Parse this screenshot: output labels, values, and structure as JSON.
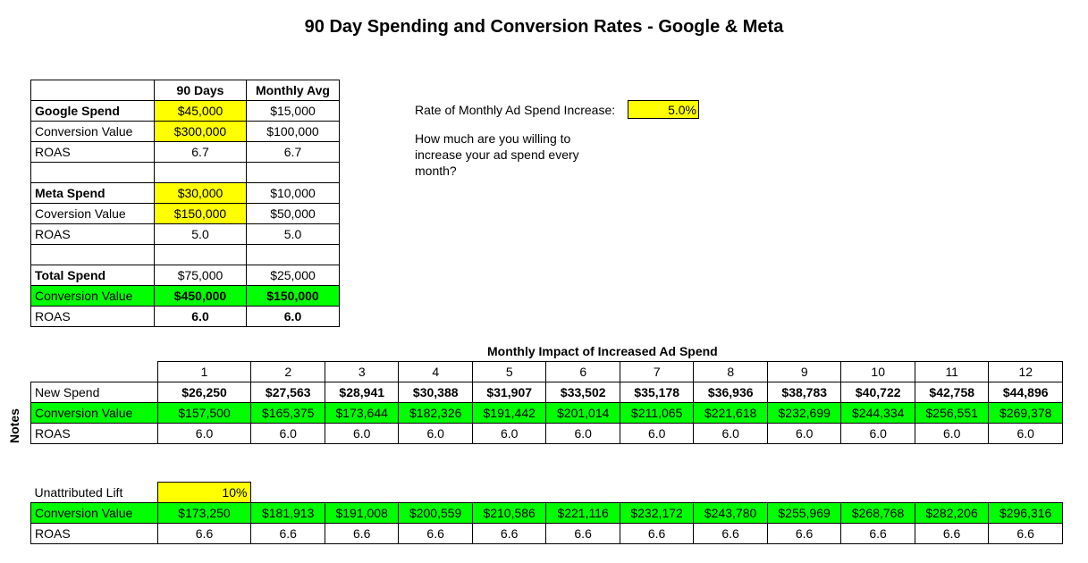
{
  "title": "90 Day Spending and Conversion Rates - Google & Meta",
  "summary": {
    "headers": [
      "",
      "90 Days",
      "Monthly Avg"
    ],
    "rows": [
      {
        "label": "Google Spend",
        "d90": "$45,000",
        "avg": "$15,000"
      },
      {
        "label": "Conversion Value",
        "d90": "$300,000",
        "avg": "$100,000"
      },
      {
        "label": "ROAS",
        "d90": "6.7",
        "avg": "6.7"
      },
      {
        "label": "Meta Spend",
        "d90": "$30,000",
        "avg": "$10,000"
      },
      {
        "label": "Coversion Value",
        "d90": "$150,000",
        "avg": "$50,000"
      },
      {
        "label": "ROAS",
        "d90": "5.0",
        "avg": "5.0"
      },
      {
        "label": "Total Spend",
        "d90": "$75,000",
        "avg": "$25,000"
      },
      {
        "label": "Conversion Value",
        "d90": "$450,000",
        "avg": "$150,000"
      },
      {
        "label": "ROAS",
        "d90": "6.0",
        "avg": "6.0"
      }
    ]
  },
  "rate": {
    "label": "Rate of Monthly Ad Spend Increase:",
    "value": "5.0%",
    "help": "How much are you willing to increase your ad spend every month?"
  },
  "monthly": {
    "title": "Monthly Impact of Increased Ad Spend",
    "months": [
      "1",
      "2",
      "3",
      "4",
      "5",
      "6",
      "7",
      "8",
      "9",
      "10",
      "11",
      "12"
    ],
    "new_spend_label": "New Spend",
    "new_spend": [
      "$26,250",
      "$27,563",
      "$28,941",
      "$30,388",
      "$31,907",
      "$33,502",
      "$35,178",
      "$36,936",
      "$38,783",
      "$40,722",
      "$42,758",
      "$44,896"
    ],
    "conv_label": "Conversion Value",
    "conv": [
      "$157,500",
      "$165,375",
      "$173,644",
      "$182,326",
      "$191,442",
      "$201,014",
      "$211,065",
      "$221,618",
      "$232,699",
      "$244,334",
      "$256,551",
      "$269,378"
    ],
    "roas_label": "ROAS",
    "roas": [
      "6.0",
      "6.0",
      "6.0",
      "6.0",
      "6.0",
      "6.0",
      "6.0",
      "6.0",
      "6.0",
      "6.0",
      "6.0",
      "6.0"
    ]
  },
  "notes_label": "Notes",
  "lift": {
    "label": "Unattributed Lift",
    "value": "10%",
    "conv_label": "Conversion Value",
    "conv": [
      "$173,250",
      "$181,913",
      "$191,008",
      "$200,559",
      "$210,586",
      "$221,116",
      "$232,172",
      "$243,780",
      "$255,969",
      "$268,768",
      "$282,206",
      "$296,316"
    ],
    "roas_label": "ROAS",
    "roas": [
      "6.6",
      "6.6",
      "6.6",
      "6.6",
      "6.6",
      "6.6",
      "6.6",
      "6.6",
      "6.6",
      "6.6",
      "6.6",
      "6.6"
    ]
  },
  "colors": {
    "input_yellow": "#ffff00",
    "highlight_green": "#00ff00"
  }
}
